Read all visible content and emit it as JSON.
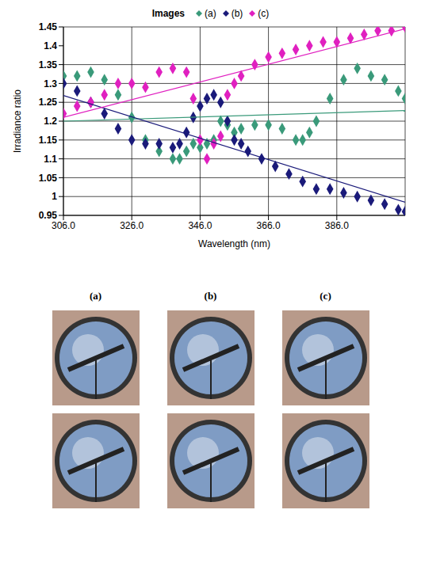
{
  "chart_data": {
    "type": "scatter",
    "legend_title": "Images",
    "legend": "top",
    "grid": true,
    "marker": "diamond",
    "x_label": "Wavelength (nm)",
    "y_label": "Irradiance ratio",
    "xlim": [
      306,
      406
    ],
    "xticks": [
      {
        "value": 306,
        "label": "306.0"
      },
      {
        "value": 326,
        "label": "326.0"
      },
      {
        "value": 346,
        "label": "346.0"
      },
      {
        "value": 366,
        "label": "366.0"
      },
      {
        "value": 386,
        "label": "386.0"
      }
    ],
    "ylim": [
      0.95,
      1.45
    ],
    "yticks": [
      0.95,
      1,
      1.05,
      1.1,
      1.15,
      1.2,
      1.25,
      1.3,
      1.35,
      1.4,
      1.45
    ],
    "series": [
      {
        "name": "(a)",
        "color": "#3a9a7a",
        "x": [
          306,
          310,
          314,
          318,
          322,
          326,
          330,
          334,
          338,
          340,
          342,
          344,
          346,
          348,
          350,
          352,
          354,
          356,
          358,
          362,
          366,
          370,
          374,
          376,
          378,
          380,
          384,
          388,
          392,
          396,
          400,
          404,
          406
        ],
        "values": [
          1.32,
          1.32,
          1.33,
          1.31,
          1.27,
          1.21,
          1.15,
          1.12,
          1.1,
          1.1,
          1.12,
          1.14,
          1.13,
          1.14,
          1.15,
          1.2,
          1.19,
          1.17,
          1.18,
          1.19,
          1.19,
          1.18,
          1.15,
          1.15,
          1.17,
          1.2,
          1.26,
          1.31,
          1.34,
          1.32,
          1.31,
          1.28,
          1.26
        ],
        "trend": {
          "x": [
            306,
            406
          ],
          "values": [
            1.2,
            1.228
          ]
        }
      },
      {
        "name": "(b)",
        "color": "#1a1a7a",
        "x": [
          306,
          310,
          314,
          318,
          322,
          326,
          330,
          334,
          338,
          340,
          342,
          344,
          346,
          348,
          350,
          352,
          354,
          356,
          358,
          360,
          364,
          368,
          372,
          376,
          380,
          384,
          388,
          392,
          396,
          400,
          404,
          406
        ],
        "values": [
          1.3,
          1.28,
          1.25,
          1.22,
          1.18,
          1.15,
          1.14,
          1.14,
          1.13,
          1.14,
          1.17,
          1.21,
          1.24,
          1.26,
          1.27,
          1.25,
          1.2,
          1.15,
          1.14,
          1.12,
          1.1,
          1.08,
          1.06,
          1.04,
          1.02,
          1.02,
          1.01,
          1.0,
          0.99,
          0.98,
          0.965,
          0.96
        ],
        "trend": {
          "x": [
            306,
            406
          ],
          "values": [
            1.268,
            0.985
          ]
        }
      },
      {
        "name": "(c)",
        "color": "#e020c0",
        "x": [
          306,
          310,
          314,
          318,
          322,
          326,
          330,
          334,
          338,
          342,
          344,
          346,
          348,
          350,
          352,
          354,
          356,
          358,
          362,
          366,
          370,
          374,
          378,
          382,
          386,
          390,
          394,
          398,
          402,
          406
        ],
        "values": [
          1.22,
          1.24,
          1.25,
          1.27,
          1.3,
          1.3,
          1.29,
          1.33,
          1.34,
          1.33,
          1.26,
          1.15,
          1.1,
          1.14,
          1.16,
          1.27,
          1.3,
          1.32,
          1.35,
          1.37,
          1.38,
          1.39,
          1.4,
          1.41,
          1.41,
          1.42,
          1.43,
          1.44,
          1.44,
          1.45
        ],
        "trend": {
          "x": [
            306,
            406
          ],
          "values": [
            1.21,
            1.445
          ]
        }
      }
    ]
  },
  "panel_labels": [
    "(a)",
    "(b)",
    "(c)"
  ]
}
